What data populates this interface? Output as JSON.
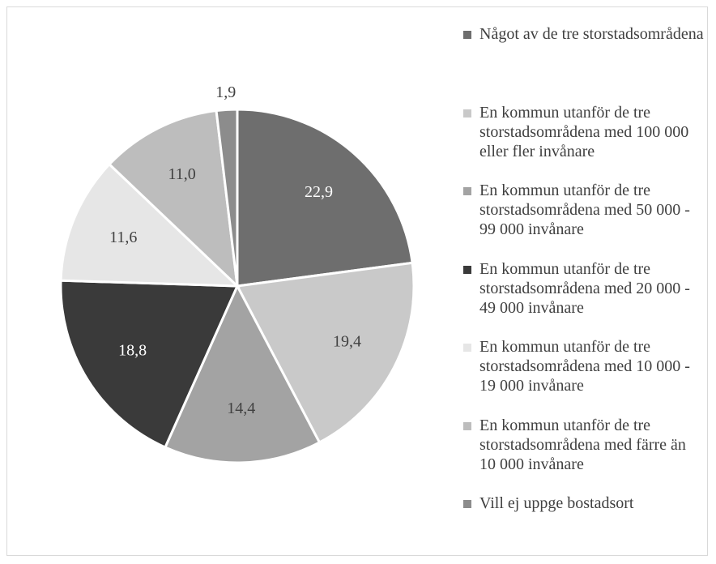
{
  "chart_data": {
    "type": "pie",
    "categories": [
      "Något av de tre storstadsområdena",
      "En kommun utanför de tre storstadsområdena med 100 000 eller fler invånare",
      "En kommun utanför de tre storstadsområdena med 50 000 - 99 000 invånare",
      "En kommun utanför de tre storstadsområdena med 20 000 - 49 000 invånare",
      "En kommun utanför de tre storstadsområdena med 10 000 - 19 000 invånare",
      "En kommun utanför de tre storstadsområdena med färre än 10 000 invånare",
      "Vill ej uppge bostadsort"
    ],
    "values": [
      22.9,
      19.4,
      14.4,
      18.8,
      11.6,
      11.0,
      1.9
    ],
    "value_labels": [
      "22,9",
      "19,4",
      "14,4",
      "18,8",
      "11,6",
      "11,0",
      "1,9"
    ],
    "colors": [
      "#6e6e6e",
      "#c9c9c9",
      "#a3a3a3",
      "#3a3a3a",
      "#e6e6e6",
      "#bdbdbd",
      "#8c8c8c"
    ],
    "legend": "right"
  }
}
